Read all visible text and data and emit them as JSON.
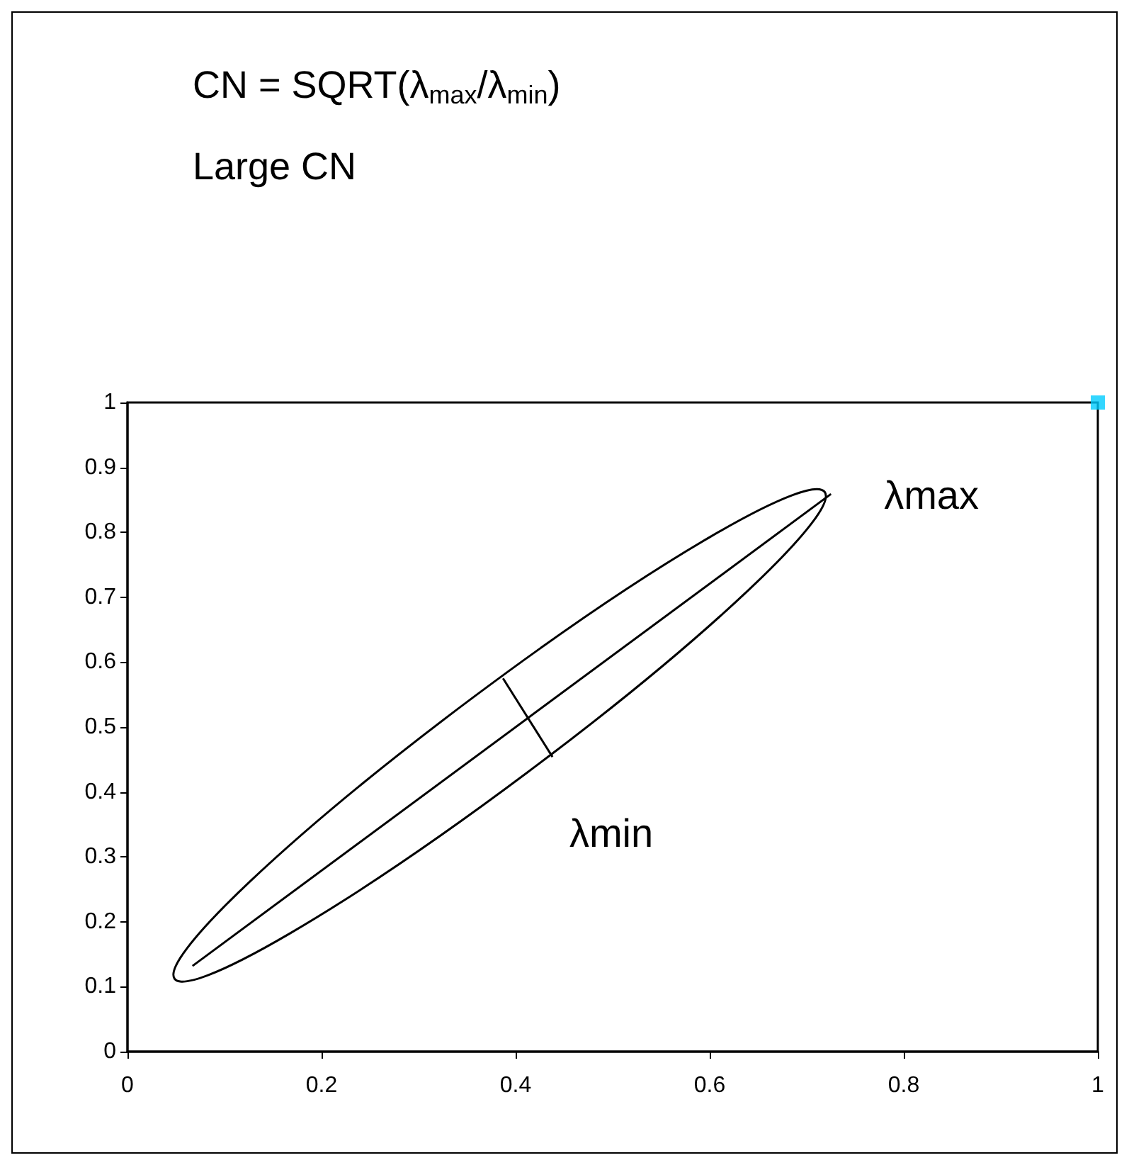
{
  "chart_data": {
    "type": "scatter",
    "title": "CN = SQRT(λ$_{max}$/λ$_{min}$)",
    "subtitle": "Large CN",
    "xlim": [
      0,
      1
    ],
    "ylim": [
      0,
      1
    ],
    "xticks": [
      0,
      0.2,
      0.4,
      0.6,
      0.8,
      1
    ],
    "yticks": [
      0,
      0.1,
      0.2,
      0.3,
      0.4,
      0.5,
      0.6,
      0.7,
      0.8,
      0.9,
      1
    ],
    "series": [
      {
        "type": "line",
        "color": "#000000",
        "marker": "none",
        "x": [
          0.067,
          0.725
        ],
        "values": [
          0.132,
          0.859
        ]
      },
      {
        "type": "line",
        "color": "#000000",
        "marker": "none",
        "x": [
          0.387,
          0.438
        ],
        "values": [
          0.575,
          0.454
        ]
      },
      {
        "color": "#00ccff",
        "marker": "square",
        "x": [
          1
        ],
        "values": [
          1
        ]
      }
    ],
    "annotations": [
      "λmax",
      "λmin"
    ]
  }
}
